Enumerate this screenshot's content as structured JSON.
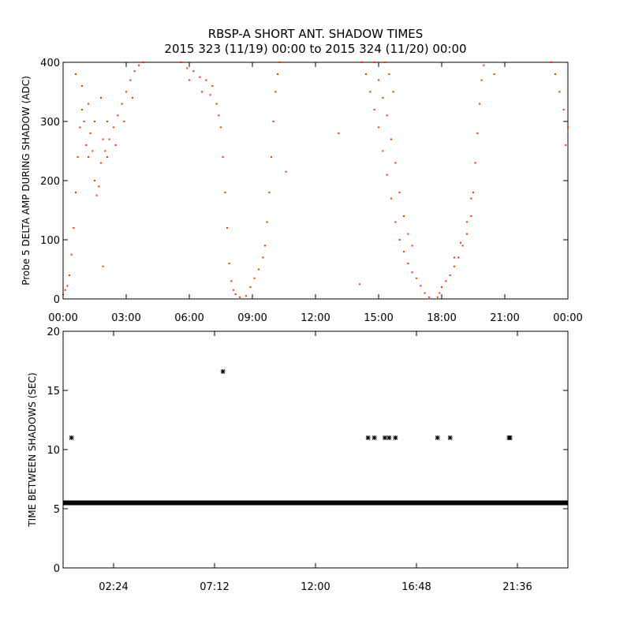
{
  "title_line1": "RBSP-A SHORT ANT. SHADOW TIMES",
  "title_line2": "2015 323 (11/19) 00:00 to 2015 324 (11/20) 00:00",
  "colors": {
    "top_series": "#ff2a00",
    "bottom_series": "#000000",
    "axes": "#000000"
  },
  "chart_data": [
    {
      "type": "scatter",
      "ylabel": "Probe 5 DELTA AMP DURING SHADOW (ADC)",
      "xlabel": "",
      "xunit": "hours",
      "xlim": [
        0,
        24
      ],
      "ylim": [
        0,
        400
      ],
      "xticks": [
        {
          "value": 0,
          "label": "00:00"
        },
        {
          "value": 3,
          "label": "03:00"
        },
        {
          "value": 6,
          "label": "06:00"
        },
        {
          "value": 9,
          "label": "09:00"
        },
        {
          "value": 12,
          "label": "12:00"
        },
        {
          "value": 15,
          "label": "15:00"
        },
        {
          "value": 18,
          "label": "18:00"
        },
        {
          "value": 21,
          "label": "21:00"
        },
        {
          "value": 24,
          "label": "00:00"
        }
      ],
      "yticks": [
        0,
        100,
        200,
        300,
        400
      ],
      "series_color": "#ff2a00",
      "points": [
        [
          0.0,
          8
        ],
        [
          0.1,
          15
        ],
        [
          0.2,
          22
        ],
        [
          0.3,
          40
        ],
        [
          0.4,
          75
        ],
        [
          0.5,
          120
        ],
        [
          0.6,
          180
        ],
        [
          0.7,
          240
        ],
        [
          0.8,
          290
        ],
        [
          0.9,
          320
        ],
        [
          1.0,
          300
        ],
        [
          1.1,
          260
        ],
        [
          1.2,
          240
        ],
        [
          1.3,
          280
        ],
        [
          1.4,
          250
        ],
        [
          1.5,
          200
        ],
        [
          1.6,
          175
        ],
        [
          1.7,
          190
        ],
        [
          1.8,
          230
        ],
        [
          1.9,
          270
        ],
        [
          2.0,
          250
        ],
        [
          2.1,
          240
        ],
        [
          2.2,
          270
        ],
        [
          2.4,
          290
        ],
        [
          2.6,
          310
        ],
        [
          2.8,
          330
        ],
        [
          3.0,
          350
        ],
        [
          3.2,
          370
        ],
        [
          3.4,
          385
        ],
        [
          3.6,
          395
        ],
        [
          3.8,
          400
        ],
        [
          0.6,
          380
        ],
        [
          0.9,
          360
        ],
        [
          1.2,
          330
        ],
        [
          1.5,
          300
        ],
        [
          1.8,
          340
        ],
        [
          2.1,
          300
        ],
        [
          2.5,
          260
        ],
        [
          2.9,
          300
        ],
        [
          3.3,
          340
        ],
        [
          5.6,
          400
        ],
        [
          5.9,
          390
        ],
        [
          6.2,
          385
        ],
        [
          6.5,
          375
        ],
        [
          6.8,
          370
        ],
        [
          7.1,
          360
        ],
        [
          7.3,
          330
        ],
        [
          7.5,
          290
        ],
        [
          7.6,
          240
        ],
        [
          7.7,
          180
        ],
        [
          7.8,
          120
        ],
        [
          7.9,
          60
        ],
        [
          8.0,
          30
        ],
        [
          8.1,
          15
        ],
        [
          8.2,
          8
        ],
        [
          8.4,
          3
        ],
        [
          6.0,
          370
        ],
        [
          6.6,
          350
        ],
        [
          7.0,
          345
        ],
        [
          7.4,
          310
        ],
        [
          8.7,
          5
        ],
        [
          8.9,
          20
        ],
        [
          9.1,
          35
        ],
        [
          9.3,
          50
        ],
        [
          9.5,
          70
        ],
        [
          9.6,
          90
        ],
        [
          9.7,
          130
        ],
        [
          9.8,
          180
        ],
        [
          9.9,
          240
        ],
        [
          10.0,
          300
        ],
        [
          10.1,
          350
        ],
        [
          10.2,
          380
        ],
        [
          10.3,
          400
        ],
        [
          13.1,
          280
        ],
        [
          14.1,
          25
        ],
        [
          10.6,
          215
        ],
        [
          1.9,
          55
        ],
        [
          14.2,
          400
        ],
        [
          14.4,
          380
        ],
        [
          14.6,
          350
        ],
        [
          14.8,
          320
        ],
        [
          15.0,
          290
        ],
        [
          15.2,
          250
        ],
        [
          15.4,
          210
        ],
        [
          15.6,
          170
        ],
        [
          15.8,
          130
        ],
        [
          16.0,
          100
        ],
        [
          16.2,
          80
        ],
        [
          16.4,
          60
        ],
        [
          16.6,
          45
        ],
        [
          16.8,
          35
        ],
        [
          17.0,
          22
        ],
        [
          17.2,
          10
        ],
        [
          17.4,
          3
        ],
        [
          14.8,
          400
        ],
        [
          15.0,
          370
        ],
        [
          15.2,
          340
        ],
        [
          15.4,
          310
        ],
        [
          15.6,
          270
        ],
        [
          15.8,
          230
        ],
        [
          16.0,
          180
        ],
        [
          16.2,
          140
        ],
        [
          16.4,
          110
        ],
        [
          16.6,
          90
        ],
        [
          15.3,
          400
        ],
        [
          15.5,
          380
        ],
        [
          15.7,
          350
        ],
        [
          17.8,
          3
        ],
        [
          17.9,
          10
        ],
        [
          18.0,
          20
        ],
        [
          18.2,
          30
        ],
        [
          18.4,
          40
        ],
        [
          18.6,
          55
        ],
        [
          18.8,
          70
        ],
        [
          19.0,
          90
        ],
        [
          19.2,
          110
        ],
        [
          19.4,
          140
        ],
        [
          19.5,
          180
        ],
        [
          19.6,
          230
        ],
        [
          19.7,
          280
        ],
        [
          19.8,
          330
        ],
        [
          19.9,
          370
        ],
        [
          20.0,
          395
        ],
        [
          18.6,
          70
        ],
        [
          18.9,
          95
        ],
        [
          19.2,
          130
        ],
        [
          19.4,
          170
        ],
        [
          20.5,
          380
        ],
        [
          23.2,
          400
        ],
        [
          23.4,
          380
        ],
        [
          23.6,
          350
        ],
        [
          23.8,
          320
        ],
        [
          24.0,
          290
        ],
        [
          23.9,
          260
        ]
      ]
    },
    {
      "type": "scatter",
      "ylabel": "TIME BETWEEN SHADOWS (SEC)",
      "xlabel": "",
      "xunit": "hours",
      "xlim": [
        0,
        24
      ],
      "ylim": [
        0,
        20
      ],
      "xticks": [
        {
          "value": 2.4,
          "label": "02:24"
        },
        {
          "value": 7.2,
          "label": "07:12"
        },
        {
          "value": 12.0,
          "label": "12:00"
        },
        {
          "value": 16.8,
          "label": "16:48"
        },
        {
          "value": 21.6,
          "label": "21:36"
        }
      ],
      "yticks": [
        0,
        5,
        10,
        15,
        20
      ],
      "series_color": "#000000",
      "baseline": {
        "y": 5.5,
        "x_from": 0.0,
        "x_to": 24.0
      },
      "points": [
        [
          0.4,
          11.0
        ],
        [
          7.6,
          16.6
        ],
        [
          14.5,
          11.0
        ],
        [
          14.8,
          11.0
        ],
        [
          15.3,
          11.0
        ],
        [
          15.5,
          11.0
        ],
        [
          15.8,
          11.0
        ],
        [
          17.8,
          11.0
        ],
        [
          18.4,
          11.0
        ],
        [
          21.2,
          11.0
        ],
        [
          21.25,
          11.0
        ]
      ]
    }
  ]
}
